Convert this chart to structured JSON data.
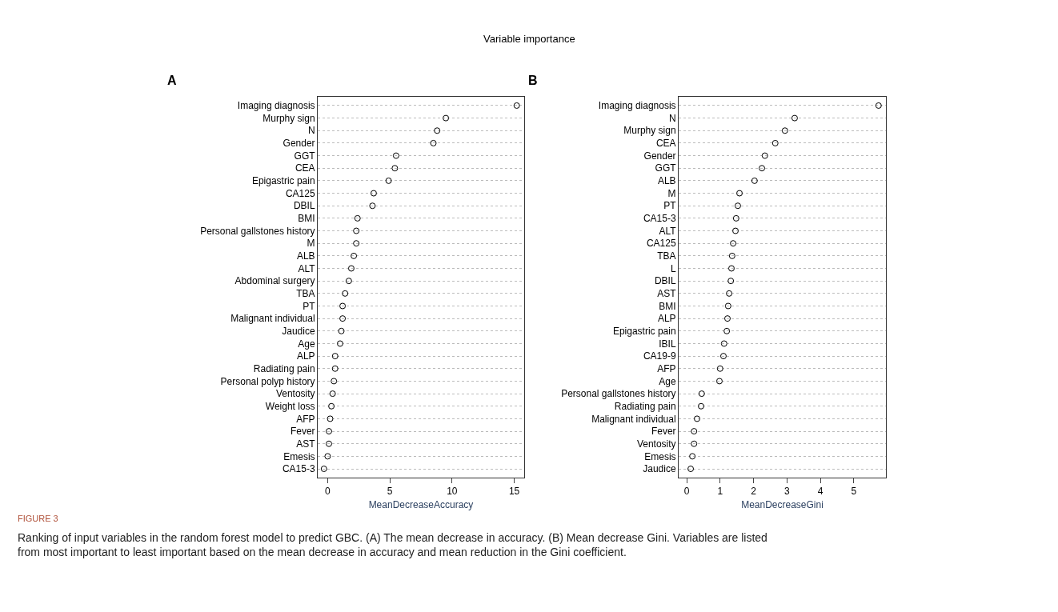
{
  "chart_data": [
    {
      "type": "scatter",
      "title": "A",
      "xlabel": "MeanDecreaseAccuracy",
      "annotations": [
        "Variable importance",
        "FIGURE 3",
        "Ranking of input variables in the random forest model to predict GBC. (A) The mean decrease in accuracy. (B) Mean decrease Gini. Variables are listed from most important to least important based on the mean decrease in accuracy and mean reduction in the Gini coefficient."
      ],
      "categories": [
        "Imaging diagnosis",
        "Murphy sign",
        "N",
        "Gender",
        "GGT",
        "CEA",
        "Epigastric pain",
        "CA125",
        "DBIL",
        "BMI",
        "Personal gallstones history",
        "M",
        "ALB",
        "ALT",
        "Abdominal surgery",
        "TBA",
        "PT",
        "Malignant individual",
        "Jaudice",
        "Age",
        "ALP",
        "Radiating pain",
        "Personal polyp history",
        "Ventosity",
        "Weight loss",
        "AFP",
        "Fever",
        "AST",
        "Emesis",
        "CA15-3"
      ],
      "series": [
        {
          "color": "#000000",
          "values": [
            15.2,
            9.5,
            8.8,
            8.5,
            5.5,
            5.4,
            4.9,
            3.7,
            3.6,
            2.4,
            2.3,
            2.3,
            2.1,
            1.9,
            1.7,
            1.4,
            1.2,
            1.2,
            1.1,
            1.0,
            0.6,
            0.6,
            0.5,
            0.4,
            0.3,
            0.2,
            0.1,
            0.1,
            0.0,
            -0.3
          ]
        }
      ],
      "xlim": [
        -0.8,
        15.8
      ],
      "xticks": [
        0,
        5,
        10,
        15
      ],
      "grid": "y",
      "marker": "circle",
      "orientation": "horizontal"
    },
    {
      "type": "scatter",
      "title": "B",
      "xlabel": "MeanDecreaseGini",
      "categories": [
        "Imaging diagnosis",
        "N",
        "Murphy sign",
        "CEA",
        "Gender",
        "GGT",
        "ALB",
        "M",
        "PT",
        "CA15-3",
        "ALT",
        "CA125",
        "TBA",
        "L",
        "DBIL",
        "AST",
        "BMI",
        "ALP",
        "Epigastric pain",
        "IBIL",
        "CA19-9",
        "AFP",
        "Age",
        "Personal gallstones history",
        "Radiating pain",
        "Malignant individual",
        "Fever",
        "Ventosity",
        "Emesis",
        "Jaudice"
      ],
      "series": [
        {
          "color": "#000000",
          "values": [
            5.74,
            3.23,
            2.94,
            2.65,
            2.34,
            2.25,
            2.03,
            1.58,
            1.53,
            1.48,
            1.46,
            1.39,
            1.36,
            1.34,
            1.32,
            1.27,
            1.24,
            1.22,
            1.2,
            1.12,
            1.1,
            1.0,
            0.98,
            0.45,
            0.43,
            0.31,
            0.22,
            0.22,
            0.17,
            0.12
          ]
        }
      ],
      "xlim": [
        -0.24,
        5.96
      ],
      "xticks": [
        0,
        1,
        2,
        3,
        4,
        5
      ],
      "grid": "y",
      "marker": "circle",
      "orientation": "horizontal"
    }
  ]
}
